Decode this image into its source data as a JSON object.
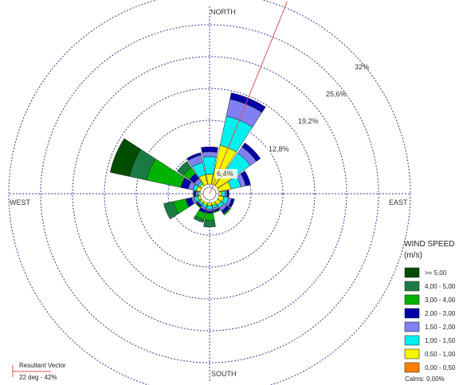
{
  "chart_data": {
    "type": "polar-bar",
    "chart_subtype": "wind rose",
    "directions": {
      "north": "NORTH",
      "south": "SOUTH",
      "east": "EAST",
      "west": "WEST"
    },
    "ring_labels": [
      "6,4%",
      "12,8%",
      "19,2%",
      "25,6%",
      "32%"
    ],
    "ring_values": [
      6.4,
      12.8,
      19.2,
      25.6,
      32
    ],
    "sector_count": 16,
    "speed_bins": [
      "0,00 - 0,50",
      "0,50 - 1,00",
      "1,00 - 1,50",
      "1,50 - 2,00",
      "2,00 - 3,00",
      "3,00 - 4,00",
      "4,00 - 5,00",
      ">= 5,00"
    ],
    "sectors": [
      {
        "direction_deg": 0,
        "cumulative_percent": [
          0,
          2.0,
          5.5,
          6.5,
          7.5,
          7.5,
          7.5,
          7.5
        ]
      },
      {
        "direction_deg": 22.5,
        "cumulative_percent": [
          0,
          8.0,
          14.0,
          17.5,
          18.8,
          18.8,
          18.8,
          18.8
        ]
      },
      {
        "direction_deg": 45,
        "cumulative_percent": [
          0,
          4.0,
          8.0,
          9.5,
          10.5,
          10.5,
          10.5,
          10.5
        ]
      },
      {
        "direction_deg": 67.5,
        "cumulative_percent": [
          0,
          2.5,
          4.5,
          5.5,
          6.5,
          6.5,
          6.5,
          6.5
        ]
      },
      {
        "direction_deg": 90,
        "cumulative_percent": [
          0,
          0.5,
          1.2,
          1.6,
          2.0,
          2.0,
          2.0,
          2.0
        ]
      },
      {
        "direction_deg": 112.5,
        "cumulative_percent": [
          0,
          1.0,
          2.0,
          2.6,
          3.2,
          3.2,
          3.2,
          3.2
        ]
      },
      {
        "direction_deg": 135,
        "cumulative_percent": [
          0,
          0.8,
          1.5,
          2.3,
          3.0,
          3.3,
          3.3,
          3.3
        ]
      },
      {
        "direction_deg": 157.5,
        "cumulative_percent": [
          0,
          0.5,
          1.0,
          1.5,
          1.8,
          2.0,
          2.0,
          2.0
        ]
      },
      {
        "direction_deg": 180,
        "cumulative_percent": [
          0,
          0.5,
          1.2,
          1.6,
          2.0,
          3.5,
          4.8,
          4.8
        ]
      },
      {
        "direction_deg": 202.5,
        "cumulative_percent": [
          0,
          0.5,
          1.0,
          1.4,
          2.0,
          3.4,
          4.0,
          4.0
        ]
      },
      {
        "direction_deg": 225,
        "cumulative_percent": [
          0,
          0.4,
          0.8,
          1.0,
          1.3,
          1.5,
          1.5,
          1.5
        ]
      },
      {
        "direction_deg": 247.5,
        "cumulative_percent": [
          0,
          0.5,
          1.2,
          1.8,
          3.0,
          5.5,
          7.5,
          7.5
        ]
      },
      {
        "direction_deg": 270,
        "cumulative_percent": [
          0,
          0.3,
          0.6,
          0.9,
          1.2,
          1.4,
          1.4,
          1.4
        ]
      },
      {
        "direction_deg": 292.5,
        "cumulative_percent": [
          0,
          0.8,
          1.5,
          2.5,
          4.0,
          11.0,
          14.5,
          18.5
        ]
      },
      {
        "direction_deg": 315,
        "cumulative_percent": [
          0,
          0.5,
          1.0,
          1.8,
          3.0,
          4.5,
          6.0,
          6.0
        ]
      },
      {
        "direction_deg": 337.5,
        "cumulative_percent": [
          0,
          2.0,
          4.5,
          6.0,
          6.5,
          6.5,
          6.5,
          6.5
        ]
      }
    ],
    "resultant": {
      "direction_deg": 22,
      "magnitude_percent": 42
    },
    "legend_placement": "bottom-right",
    "grid": true
  },
  "legend": {
    "title_line1": "WIND SPEED",
    "title_line2": "(m/s)",
    "items": [
      {
        "label": ">= 5,00",
        "color": "#004d00"
      },
      {
        "label": "4,00 - 5,00",
        "color": "#1b7a44"
      },
      {
        "label": "3,00 - 4,00",
        "color": "#00b300"
      },
      {
        "label": "2,00 - 3,00",
        "color": "#0000a8"
      },
      {
        "label": "1,50 - 2,00",
        "color": "#8080f0"
      },
      {
        "label": "1,00 - 1,50",
        "color": "#00f0f0"
      },
      {
        "label": "0,50 - 1,00",
        "color": "#f5f500"
      },
      {
        "label": "0,00 - 0,50",
        "color": "#ff8000"
      }
    ],
    "calms": "Calms: 0,00%"
  },
  "resultant_vector": {
    "title": "Resultant Vector",
    "value": "22 deg - 42%",
    "color": "#e05050"
  },
  "colors": {
    "grid": "#3a3aa0",
    "bin_colors": [
      "#ff8000",
      "#f5f500",
      "#00f0f0",
      "#8080f0",
      "#0000a8",
      "#00b300",
      "#1b7a44",
      "#004d00"
    ]
  }
}
